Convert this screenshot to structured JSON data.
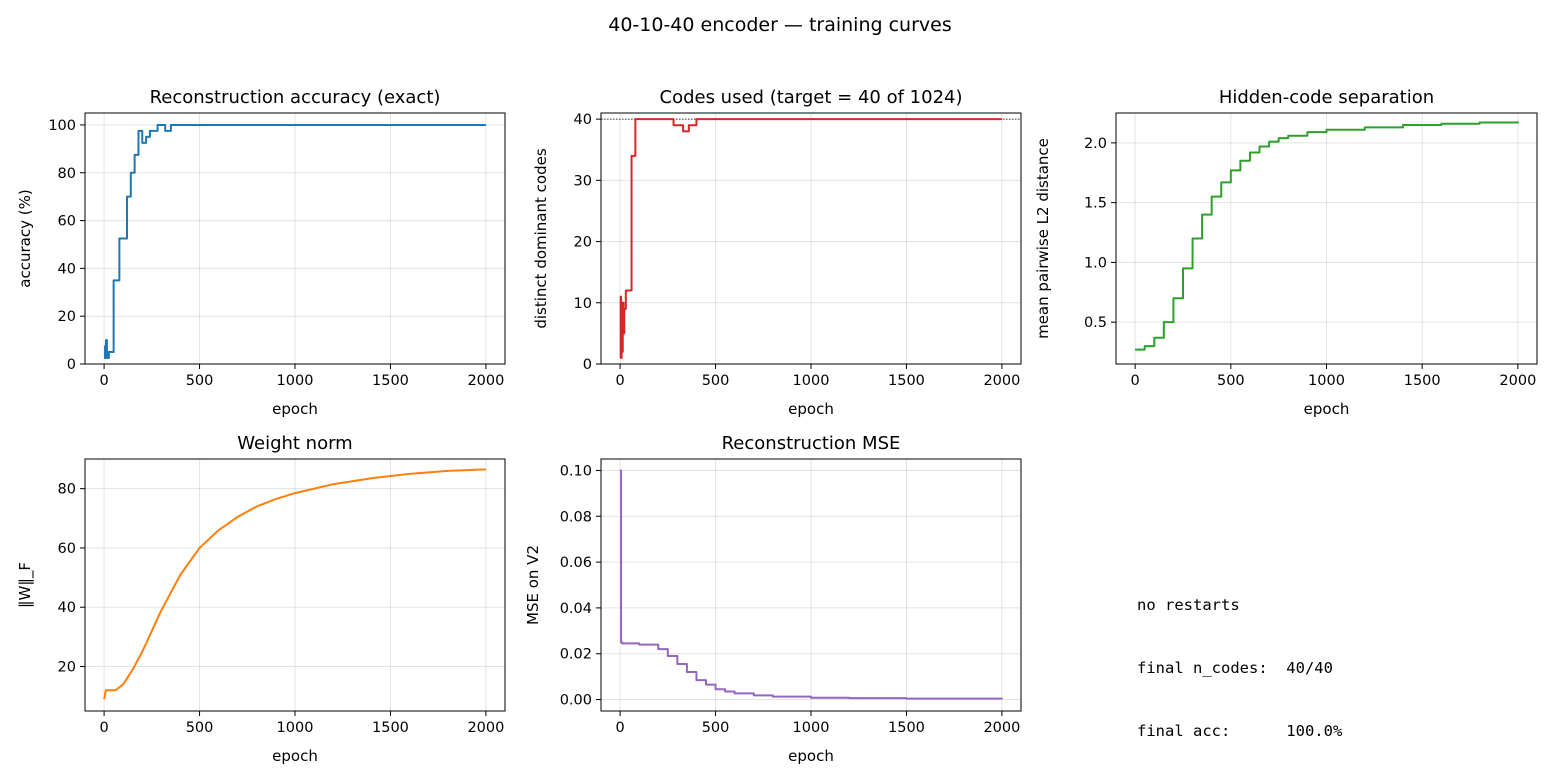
{
  "suptitle": "40-10-40 encoder — training curves",
  "summary": {
    "line1": "no restarts",
    "line2": "final n_codes:  40/40",
    "line3": "final acc:      100.0%"
  },
  "chart_data": [
    {
      "id": "acc",
      "type": "line",
      "title": "Reconstruction accuracy (exact)",
      "xlabel": "epoch",
      "ylabel": "accuracy (%)",
      "xlim": [
        -100,
        2100
      ],
      "ylim": [
        0,
        105
      ],
      "xticks": [
        0,
        500,
        1000,
        1500,
        2000
      ],
      "yticks": [
        0,
        20,
        40,
        60,
        80,
        100
      ],
      "grid": true,
      "color": "#1f77b4",
      "step": true,
      "series": [
        {
          "x": [
            0,
            5,
            8,
            10,
            15,
            20,
            25,
            40,
            50,
            80,
            100,
            120,
            140,
            160,
            180,
            200,
            220,
            240,
            260,
            280,
            300,
            320,
            350,
            400,
            2000
          ],
          "y": [
            2.5,
            7.5,
            2.5,
            10,
            5,
            2.5,
            5,
            5,
            35,
            52.5,
            52.5,
            70,
            80,
            87.5,
            97.5,
            92.5,
            95,
            97.5,
            97.5,
            100,
            100,
            97.5,
            100,
            100,
            100
          ]
        }
      ]
    },
    {
      "id": "codes",
      "type": "line",
      "title": "Codes used (target = 40 of 1024)",
      "xlabel": "epoch",
      "ylabel": "distinct dominant codes",
      "xlim": [
        -100,
        2100
      ],
      "ylim": [
        0,
        41
      ],
      "xticks": [
        0,
        500,
        1000,
        1500,
        2000
      ],
      "yticks": [
        0,
        10,
        20,
        30,
        40
      ],
      "grid": true,
      "color": "#d62728",
      "step": true,
      "reference_line": 40,
      "series": [
        {
          "x": [
            0,
            3,
            5,
            8,
            10,
            14,
            18,
            22,
            26,
            30,
            40,
            60,
            80,
            100,
            150,
            200,
            250,
            280,
            300,
            330,
            360,
            400,
            2000
          ],
          "y": [
            1,
            11,
            1,
            8,
            2,
            10,
            5,
            9,
            9,
            12,
            12,
            34,
            40,
            40,
            40,
            40,
            40,
            39,
            39,
            38,
            39,
            40,
            40
          ]
        }
      ]
    },
    {
      "id": "sep",
      "type": "line",
      "title": "Hidden-code separation",
      "xlabel": "epoch",
      "ylabel": "mean pairwise L2 distance",
      "xlim": [
        -100,
        2100
      ],
      "ylim": [
        0.15,
        2.25
      ],
      "xticks": [
        0,
        500,
        1000,
        1500,
        2000
      ],
      "yticks": [
        0.5,
        1.0,
        1.5,
        2.0
      ],
      "ytick_format": 1,
      "grid": true,
      "color": "#2ca02c",
      "step": true,
      "series": [
        {
          "x": [
            0,
            50,
            100,
            150,
            200,
            250,
            300,
            350,
            400,
            450,
            500,
            550,
            600,
            650,
            700,
            750,
            800,
            900,
            1000,
            1200,
            1400,
            1600,
            1800,
            2000
          ],
          "y": [
            0.27,
            0.3,
            0.37,
            0.5,
            0.7,
            0.95,
            1.2,
            1.4,
            1.55,
            1.67,
            1.77,
            1.85,
            1.92,
            1.97,
            2.01,
            2.04,
            2.06,
            2.09,
            2.11,
            2.13,
            2.15,
            2.16,
            2.17,
            2.18
          ]
        }
      ]
    },
    {
      "id": "wnorm",
      "type": "line",
      "title": "Weight norm",
      "xlabel": "epoch",
      "ylabel": "‖W‖_F",
      "xlim": [
        -100,
        2100
      ],
      "ylim": [
        5,
        90
      ],
      "xticks": [
        0,
        500,
        1000,
        1500,
        2000
      ],
      "yticks": [
        20,
        40,
        60,
        80
      ],
      "grid": true,
      "color": "#ff7f0e",
      "step": false,
      "series": [
        {
          "x": [
            0,
            10,
            30,
            60,
            100,
            150,
            200,
            250,
            300,
            400,
            500,
            600,
            700,
            800,
            900,
            1000,
            1200,
            1400,
            1600,
            1800,
            2000
          ],
          "y": [
            9,
            12,
            12,
            12,
            14,
            19,
            25,
            32,
            39,
            51,
            60,
            66,
            70.5,
            74,
            76.5,
            78.5,
            81.5,
            83.5,
            85,
            86,
            86.5
          ]
        }
      ]
    },
    {
      "id": "mse",
      "type": "line",
      "title": "Reconstruction MSE",
      "xlabel": "epoch",
      "ylabel": "MSE on V2",
      "xlim": [
        -100,
        2100
      ],
      "ylim": [
        -0.005,
        0.105
      ],
      "xticks": [
        0,
        500,
        1000,
        1500,
        2000
      ],
      "yticks": [
        0.0,
        0.02,
        0.04,
        0.06,
        0.08,
        0.1
      ],
      "ytick_format": 2,
      "grid": true,
      "color": "#9467bd",
      "step": true,
      "series": [
        {
          "x": [
            0,
            5,
            10,
            100,
            200,
            250,
            300,
            350,
            400,
            450,
            500,
            550,
            600,
            700,
            800,
            1000,
            1200,
            1500,
            2000
          ],
          "y": [
            0.1,
            0.025,
            0.0245,
            0.024,
            0.022,
            0.019,
            0.0155,
            0.012,
            0.0085,
            0.0065,
            0.0045,
            0.0035,
            0.0027,
            0.0018,
            0.0013,
            0.0008,
            0.0006,
            0.0004,
            0.0003
          ]
        }
      ]
    }
  ]
}
